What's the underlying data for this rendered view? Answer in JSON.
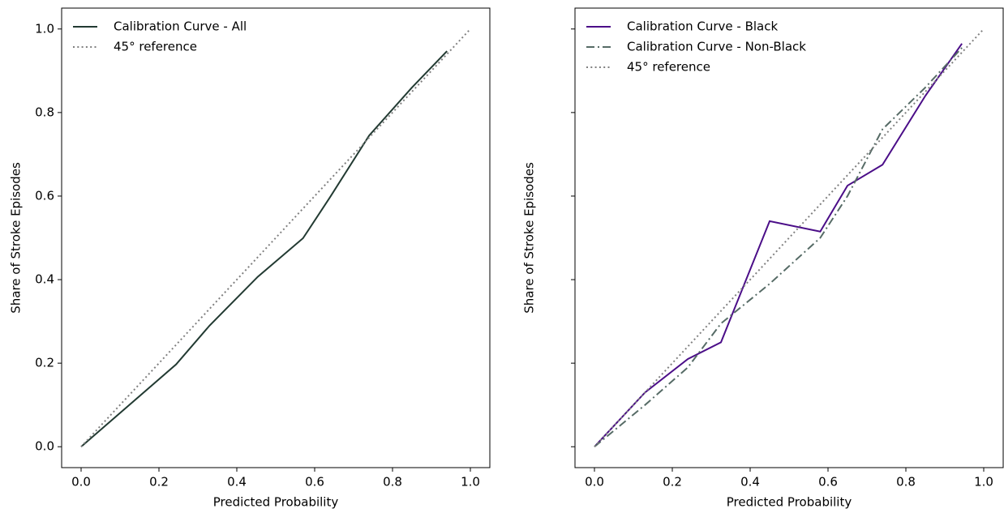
{
  "chart_data": [
    {
      "type": "line",
      "xlabel": "Predicted Probability",
      "ylabel": "Share of Stroke Episodes",
      "xlim": [
        -0.05,
        1.05
      ],
      "ylim": [
        -0.05,
        1.05
      ],
      "xticks": [
        {
          "value": 0,
          "label": "0.0"
        },
        0.2,
        0.4,
        0.6,
        0.8,
        {
          "value": 1,
          "label": "1.0"
        }
      ],
      "yticks": [
        {
          "value": 0,
          "label": "0.0"
        },
        0.2,
        0.4,
        0.6,
        0.8,
        {
          "value": 1,
          "label": "1.0"
        }
      ],
      "show_ytick_labels": true,
      "grid": false,
      "legend": "upper-left",
      "series": [
        {
          "name": "Calibration Curve - All",
          "color": "#223a32",
          "linestyle": "solid",
          "x": [
            0,
            0.244,
            0.33,
            0.454,
            0.57,
            0.64,
            0.74,
            0.85,
            0.94
          ],
          "values": [
            0,
            0.197,
            0.29,
            0.407,
            0.499,
            0.598,
            0.745,
            0.86,
            0.947
          ]
        },
        {
          "name": "45° reference",
          "color": "#808080",
          "linestyle": "dotted",
          "x": [
            0,
            1
          ],
          "values": [
            0,
            1
          ]
        }
      ]
    },
    {
      "type": "line",
      "xlabel": "Predicted Probability",
      "ylabel": "Share of Stroke Episodes",
      "xlim": [
        -0.05,
        1.05
      ],
      "ylim": [
        -0.05,
        1.05
      ],
      "xticks": [
        {
          "value": 0,
          "label": "0.0"
        },
        0.2,
        0.4,
        0.6,
        0.8,
        {
          "value": 1,
          "label": "1.0"
        }
      ],
      "yticks": [
        0,
        0.2,
        0.4,
        0.6,
        0.8,
        1
      ],
      "show_ytick_labels": false,
      "grid": false,
      "legend": "upper-left",
      "series": [
        {
          "name": "Calibration Curve - Black",
          "color": "#4b0e88",
          "linestyle": "solid",
          "x": [
            0,
            0.13,
            0.24,
            0.325,
            0.45,
            0.58,
            0.65,
            0.74,
            0.85,
            0.944
          ],
          "values": [
            0,
            0.13,
            0.21,
            0.25,
            0.54,
            0.515,
            0.625,
            0.675,
            0.84,
            0.965
          ]
        },
        {
          "name": "Calibration Curve - Non-Black",
          "color": "#566b66",
          "linestyle": "dashdot",
          "x": [
            0,
            0.13,
            0.24,
            0.325,
            0.45,
            0.58,
            0.65,
            0.74,
            0.85,
            0.944
          ],
          "values": [
            0,
            0.1,
            0.19,
            0.295,
            0.39,
            0.5,
            0.6,
            0.76,
            0.86,
            0.955
          ]
        },
        {
          "name": "45° reference",
          "color": "#808080",
          "linestyle": "dotted",
          "x": [
            0,
            1
          ],
          "values": [
            0,
            1
          ]
        }
      ]
    }
  ]
}
